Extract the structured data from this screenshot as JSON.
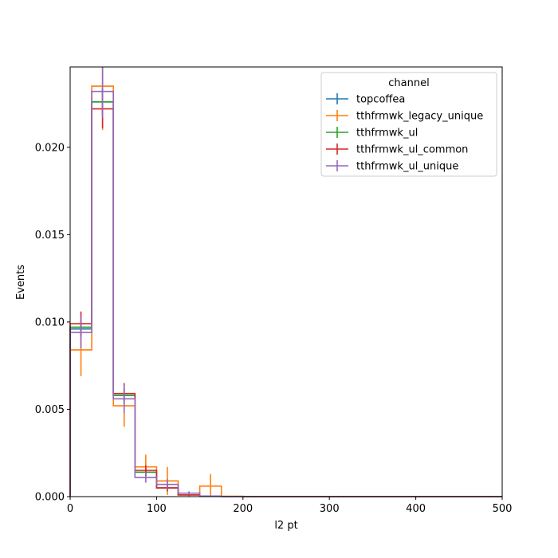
{
  "chart_data": {
    "type": "step",
    "xlabel": "l2 pt",
    "ylabel": "Events",
    "xlim": [
      0,
      500
    ],
    "ylim": [
      0,
      0.0246
    ],
    "x_ticks": [
      0,
      100,
      200,
      300,
      400,
      500
    ],
    "y_ticks": [
      0.0,
      0.005,
      0.01,
      0.015,
      0.02
    ],
    "y_tick_labels": [
      "0.000",
      "0.005",
      "0.010",
      "0.015",
      "0.020"
    ],
    "grid": false,
    "legend": {
      "title": "channel",
      "placement": "upper-right"
    },
    "bin_edges": [
      0,
      25,
      50,
      75,
      100,
      125,
      150,
      175,
      200,
      225,
      250,
      275,
      300,
      325,
      350,
      375,
      400,
      425,
      450,
      475,
      500
    ],
    "series": [
      {
        "name": "topcoffea",
        "color": "#1f77b4",
        "values": [
          0.0096,
          0.0226,
          0.0058,
          0.0014,
          0.0005,
          0.0001,
          3e-05,
          1e-05,
          0,
          0,
          0,
          0,
          0,
          0,
          0,
          0,
          0,
          0,
          0,
          0
        ],
        "errors": [
          0.0005,
          0.0008,
          0.0004,
          0.0002,
          0.0001,
          5e-05,
          2e-05,
          1e-05,
          0,
          0,
          0,
          0,
          0,
          0,
          0,
          0,
          0,
          0,
          0,
          0
        ]
      },
      {
        "name": "tthfrmwk_legacy_unique",
        "color": "#ff7f0e",
        "values": [
          0.0084,
          0.0235,
          0.0052,
          0.0017,
          0.0009,
          0.0001,
          0.0006,
          2e-05,
          0,
          0,
          0,
          0,
          0,
          0,
          0,
          0,
          0,
          0,
          0,
          0
        ],
        "errors": [
          0.0015,
          0.0025,
          0.0012,
          0.0007,
          0.0008,
          0.0001,
          0.0007,
          2e-05,
          0,
          0,
          0,
          0,
          0,
          0,
          0,
          0,
          0,
          0,
          0,
          0
        ]
      },
      {
        "name": "tthfrmwk_ul",
        "color": "#2ca02c",
        "values": [
          0.0097,
          0.0226,
          0.0058,
          0.0014,
          0.0005,
          0.0001,
          3e-05,
          1e-05,
          0,
          0,
          0,
          0,
          0,
          0,
          0,
          0,
          0,
          0,
          0,
          0
        ],
        "errors": [
          0.0005,
          0.0008,
          0.0004,
          0.0002,
          0.0001,
          5e-05,
          2e-05,
          1e-05,
          0,
          0,
          0,
          0,
          0,
          0,
          0,
          0,
          0,
          0,
          0,
          0
        ]
      },
      {
        "name": "tthfrmwk_ul_common",
        "color": "#d62728",
        "values": [
          0.0099,
          0.0222,
          0.0059,
          0.0015,
          0.0005,
          0.0001,
          3e-05,
          1e-05,
          0,
          0,
          0,
          0,
          0,
          0,
          0,
          0,
          0,
          0,
          0,
          0
        ],
        "errors": [
          0.0007,
          0.0011,
          0.0006,
          0.0003,
          0.0002,
          5e-05,
          2e-05,
          1e-05,
          0,
          0,
          0,
          0,
          0,
          0,
          0,
          0,
          0,
          0,
          0,
          0
        ]
      },
      {
        "name": "tthfrmwk_ul_unique",
        "color": "#9467bd",
        "values": [
          0.0094,
          0.0232,
          0.0056,
          0.0011,
          0.0007,
          0.0002,
          3e-05,
          1e-05,
          0,
          0,
          0,
          0,
          0,
          0,
          0,
          0,
          0,
          0,
          0,
          0
        ],
        "errors": [
          0.0009,
          0.0015,
          0.0008,
          0.0003,
          0.0003,
          0.0001,
          2e-05,
          1e-05,
          0,
          0,
          0,
          0,
          0,
          0,
          0,
          0,
          0,
          0,
          0,
          0
        ]
      }
    ]
  }
}
